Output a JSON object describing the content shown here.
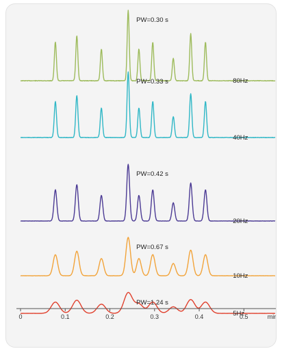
{
  "chart_data": {
    "type": "line",
    "title": "",
    "xlabel": "min",
    "ylabel": "",
    "xlim": [
      0,
      0.57
    ],
    "x_ticks": [
      "0",
      "0.1",
      "0.2",
      "0.3",
      "0.4",
      "0.5",
      "min"
    ],
    "x_tick_values": [
      0,
      0.1,
      0.2,
      0.3,
      0.4,
      0.5
    ],
    "peak_retention_times_min": [
      0.078,
      0.126,
      0.181,
      0.241,
      0.265,
      0.296,
      0.342,
      0.381,
      0.414
    ],
    "peak_relative_heights": [
      0.55,
      0.64,
      0.45,
      1.0,
      0.45,
      0.55,
      0.32,
      0.67,
      0.55
    ],
    "series": [
      {
        "name": "80Hz",
        "pw_label": "PW=0.30 s",
        "peak_width_s": 0.3,
        "color": "#9dbb5b",
        "noise_amplitude": 0.4
      },
      {
        "name": "40Hz",
        "pw_label": "PW=0.33 s",
        "peak_width_s": 0.33,
        "color": "#2fb7c6",
        "noise_amplitude": 0.3
      },
      {
        "name": "20Hz",
        "pw_label": "PW=0.42 s",
        "peak_width_s": 0.42,
        "color": "#4b3a94",
        "noise_amplitude": 0.2
      },
      {
        "name": "10Hz",
        "pw_label": "PW=0.67 s",
        "peak_width_s": 0.67,
        "color": "#f2a339",
        "noise_amplitude": 0.15
      },
      {
        "name": "5Hz",
        "pw_label": "PW=1.24 s",
        "peak_width_s": 1.24,
        "color": "#e0402d",
        "noise_amplitude": 0.1
      }
    ],
    "axis_color": "#555555",
    "grid": false
  }
}
